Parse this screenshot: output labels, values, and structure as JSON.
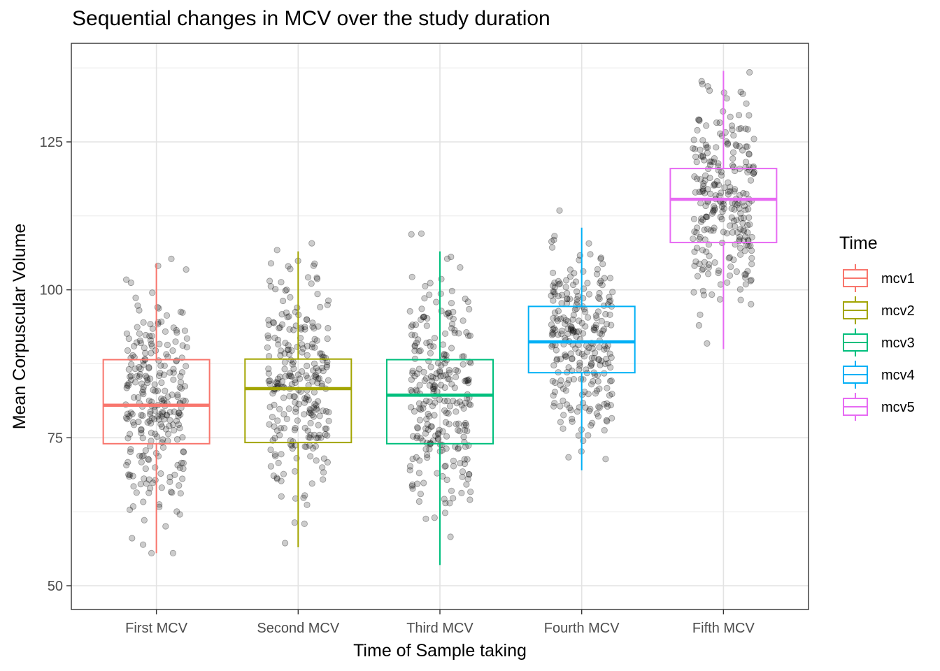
{
  "chart_data": {
    "type": "boxplot",
    "title": "Sequential changes in MCV over the study duration",
    "xlabel": "Time of Sample taking",
    "ylabel": "Mean Corpuscular Volume",
    "ylim": [
      46,
      141
    ],
    "yticks": [
      50,
      75,
      100,
      125
    ],
    "grid": true,
    "legend": {
      "title": "Time",
      "placement": "right"
    },
    "categories": [
      "First MCV",
      "Second MCV",
      "Third MCV",
      "Fourth MCV",
      "Fifth MCV"
    ],
    "series": [
      {
        "name": "mcv1",
        "color": "#F8766D",
        "min": 55.5,
        "q1": 74,
        "median": 80.5,
        "q3": 88.2,
        "max": 104.5,
        "outliers": []
      },
      {
        "name": "mcv2",
        "color": "#A3A500",
        "min": 56.5,
        "q1": 74.2,
        "median": 83.3,
        "q3": 88.3,
        "max": 106.5,
        "outliers": []
      },
      {
        "name": "mcv3",
        "color": "#00BF7D",
        "min": 53.5,
        "q1": 74,
        "median": 82.2,
        "q3": 88.2,
        "max": 106.5,
        "outliers": []
      },
      {
        "name": "mcv4",
        "color": "#00B0F6",
        "min": 69.5,
        "q1": 86,
        "median": 91.2,
        "q3": 97.2,
        "max": 110.5,
        "outliers": []
      },
      {
        "name": "mcv5",
        "color": "#E76BF3",
        "min": 90,
        "q1": 108,
        "median": 115.3,
        "q3": 120.5,
        "max": 137,
        "outliers": []
      }
    ],
    "points_note_excluded": true
  }
}
